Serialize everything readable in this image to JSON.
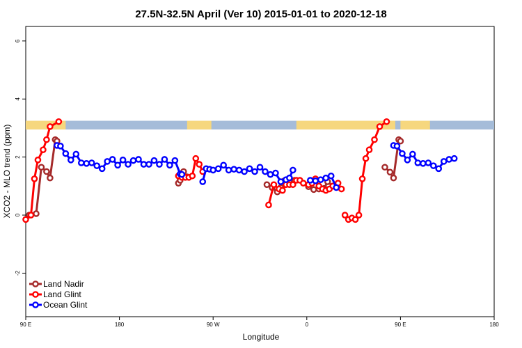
{
  "chart_data": {
    "type": "line",
    "title": "27.5N-32.5N April (Ver 10)   2015-01-01 to 2020-12-18",
    "xlabel": "Longitude",
    "ylabel": "XCO2 - MLO trend (ppm)",
    "xlim": [
      -90,
      180
    ],
    "ylim": [
      -3.5,
      6.5
    ],
    "x_ticks": [
      {
        "value": -90,
        "label": "90 E"
      },
      {
        "value": -36,
        "label": "180"
      },
      {
        "value": 18,
        "label": "90 W"
      },
      {
        "value": 72,
        "label": "0"
      },
      {
        "value": 126,
        "label": "90 E"
      },
      {
        "value": 180,
        "label": "180"
      }
    ],
    "y_ticks": [
      {
        "value": -2,
        "label": "-2"
      },
      {
        "value": 0,
        "label": "0"
      },
      {
        "value": 2,
        "label": "2"
      },
      {
        "value": 4,
        "label": "4"
      },
      {
        "value": 6,
        "label": "6"
      }
    ],
    "grid": false,
    "legend_position": "bottom-left",
    "surface_band": {
      "y_range": [
        2.95,
        3.25
      ],
      "ocean_color": "#a5bcd9",
      "land_color": "#f6d77e",
      "land_segments": [
        [
          -90,
          -67
        ],
        [
          3,
          17
        ],
        [
          66,
          123
        ],
        [
          126,
          143
        ]
      ]
    },
    "series": [
      {
        "name": "Land Nadir",
        "color": "#a52a2a",
        "segments": [
          [
            [
              -88,
              0
            ],
            [
              -84,
              0.05
            ],
            [
              -81,
              1.65
            ],
            [
              -78,
              1.5
            ],
            [
              -76,
              1.28
            ],
            [
              -73,
              2.6
            ],
            [
              -72,
              2.55
            ]
          ],
          [
            [
              -2,
              1.1
            ],
            [
              -1,
              1.2
            ],
            [
              1,
              1.5
            ],
            [
              3,
              1.32
            ]
          ],
          [
            [
              49,
              1.05
            ],
            [
              52,
              0.95
            ],
            [
              55,
              0.8
            ],
            [
              57,
              0.95
            ]
          ],
          [
            [
              59,
              1.18
            ],
            [
              62,
              1.2
            ],
            [
              65,
              1.2
            ]
          ],
          [
            [
              73,
              0.98
            ],
            [
              76,
              0.88
            ],
            [
              79,
              0.9
            ],
            [
              82,
              0.92
            ],
            [
              84,
              1.15
            ],
            [
              87,
              1.0
            ]
          ],
          [
            [
              117,
              1.65
            ],
            [
              120,
              1.48
            ],
            [
              122,
              1.28
            ],
            [
              125,
              2.6
            ],
            [
              126,
              2.55
            ]
          ]
        ]
      },
      {
        "name": "Land Glint",
        "color": "#ff0000",
        "segments": [
          [
            [
              -90,
              -0.15
            ],
            [
              -87,
              0.0
            ],
            [
              -85,
              1.25
            ],
            [
              -83,
              1.9
            ],
            [
              -80,
              2.25
            ],
            [
              -78,
              2.6
            ],
            [
              -76,
              3.05
            ],
            [
              -71,
              3.22
            ]
          ],
          [
            [
              -2,
              1.35
            ],
            [
              0,
              1.3
            ],
            [
              2,
              1.3
            ],
            [
              4,
              1.3
            ],
            [
              6,
              1.35
            ],
            [
              8,
              1.95
            ],
            [
              10,
              1.75
            ],
            [
              12,
              1.5
            ]
          ],
          [
            [
              50,
              0.35
            ],
            [
              53,
              1.05
            ],
            [
              56,
              0.9
            ],
            [
              58,
              0.85
            ],
            [
              60,
              1.05
            ],
            [
              62,
              1.05
            ],
            [
              64,
              1.05
            ],
            [
              66,
              1.2
            ],
            [
              68,
              1.2
            ],
            [
              70,
              1.1
            ],
            [
              73,
              1.05
            ],
            [
              75,
              1.1
            ],
            [
              77,
              1.25
            ],
            [
              79,
              1.0
            ],
            [
              81,
              0.9
            ],
            [
              83,
              0.85
            ],
            [
              85,
              0.9
            ],
            [
              87,
              1.0
            ],
            [
              90,
              1.1
            ],
            [
              92,
              0.9
            ]
          ],
          [
            [
              94,
              0.0
            ],
            [
              96,
              -0.15
            ],
            [
              98,
              -0.1
            ],
            [
              100,
              -0.15
            ],
            [
              102,
              0.0
            ],
            [
              104,
              1.25
            ],
            [
              106,
              1.95
            ],
            [
              108,
              2.25
            ],
            [
              111,
              2.6
            ],
            [
              114,
              3.05
            ],
            [
              118,
              3.22
            ]
          ]
        ]
      },
      {
        "name": "Ocean Glint",
        "color": "#0000ff",
        "segments": [
          [
            [
              -72,
              2.4
            ],
            [
              -70,
              2.38
            ],
            [
              -67,
              2.12
            ],
            [
              -64,
              1.9
            ],
            [
              -61,
              2.1
            ],
            [
              -58,
              1.8
            ],
            [
              -55,
              1.78
            ],
            [
              -52,
              1.8
            ],
            [
              -49,
              1.7
            ],
            [
              -46,
              1.6
            ],
            [
              -43,
              1.85
            ],
            [
              -40,
              1.92
            ],
            [
              -37,
              1.72
            ],
            [
              -34,
              1.9
            ],
            [
              -31,
              1.75
            ],
            [
              -28,
              1.88
            ],
            [
              -25,
              1.92
            ],
            [
              -22,
              1.75
            ],
            [
              -19,
              1.75
            ],
            [
              -16,
              1.88
            ],
            [
              -13,
              1.75
            ],
            [
              -10,
              1.92
            ],
            [
              -7,
              1.72
            ],
            [
              -4,
              1.88
            ],
            [
              -1,
              1.42
            ],
            [
              0,
              1.4
            ]
          ],
          [
            [
              12,
              1.15
            ],
            [
              14,
              1.6
            ],
            [
              16,
              1.58
            ],
            [
              18,
              1.55
            ],
            [
              21,
              1.6
            ],
            [
              24,
              1.72
            ],
            [
              27,
              1.55
            ],
            [
              30,
              1.58
            ],
            [
              33,
              1.55
            ],
            [
              36,
              1.5
            ],
            [
              39,
              1.6
            ],
            [
              42,
              1.5
            ],
            [
              45,
              1.65
            ],
            [
              48,
              1.5
            ],
            [
              51,
              1.4
            ],
            [
              54,
              1.45
            ],
            [
              57,
              1.15
            ],
            [
              60,
              1.22
            ],
            [
              62,
              1.28
            ],
            [
              64,
              1.55
            ]
          ],
          [
            [
              74,
              1.2
            ],
            [
              77,
              1.18
            ],
            [
              80,
              1.22
            ],
            [
              83,
              1.28
            ],
            [
              86,
              1.35
            ],
            [
              89,
              0.95
            ]
          ],
          [
            [
              122,
              2.4
            ],
            [
              124,
              2.38
            ],
            [
              127,
              2.12
            ],
            [
              130,
              1.9
            ],
            [
              133,
              2.1
            ],
            [
              136,
              1.8
            ],
            [
              139,
              1.78
            ],
            [
              142,
              1.8
            ],
            [
              145,
              1.7
            ],
            [
              148,
              1.6
            ],
            [
              151,
              1.85
            ],
            [
              154,
              1.92
            ],
            [
              157,
              1.95
            ]
          ]
        ]
      }
    ]
  }
}
